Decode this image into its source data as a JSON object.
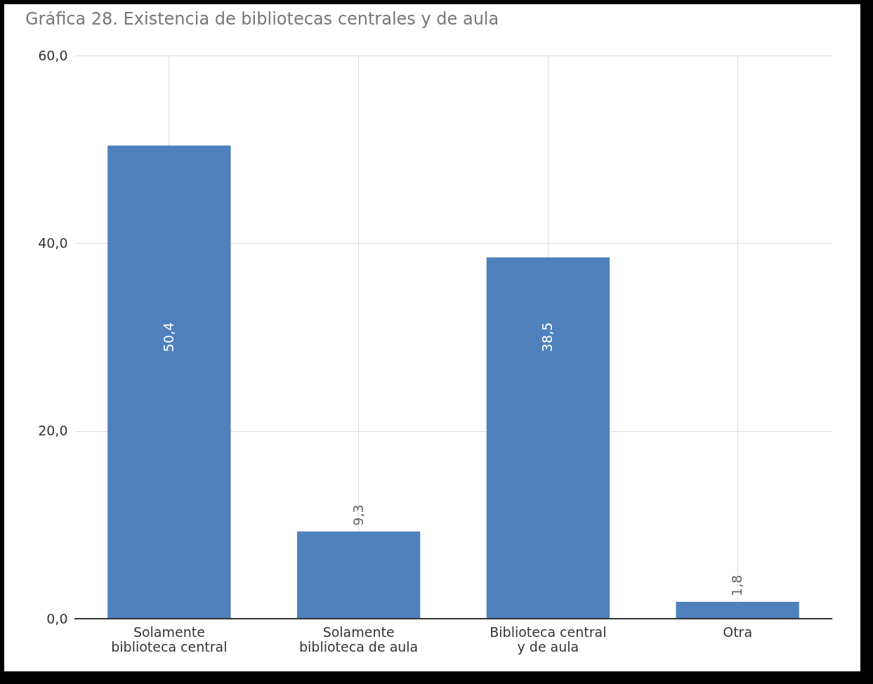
{
  "chart_data": {
    "type": "bar",
    "title": "Gráfica 28. Existencia de bibliotecas centrales y de aula",
    "categories": [
      "Solamente biblioteca central",
      "Solamente biblioteca de aula",
      "Biblioteca central y de aula",
      "Otra"
    ],
    "values": [
      50.4,
      9.3,
      38.5,
      1.8
    ],
    "value_labels": [
      "50,4",
      "9,3",
      "38,5",
      "1,8"
    ],
    "color": "#4f81bd",
    "ylim": [
      0,
      60
    ],
    "yticks": [
      {
        "value": 0,
        "label": "0,0"
      },
      {
        "value": 20,
        "label": "20,0"
      },
      {
        "value": 40,
        "label": "40,0"
      },
      {
        "value": 60,
        "label": "60,0"
      }
    ],
    "grid": true
  }
}
